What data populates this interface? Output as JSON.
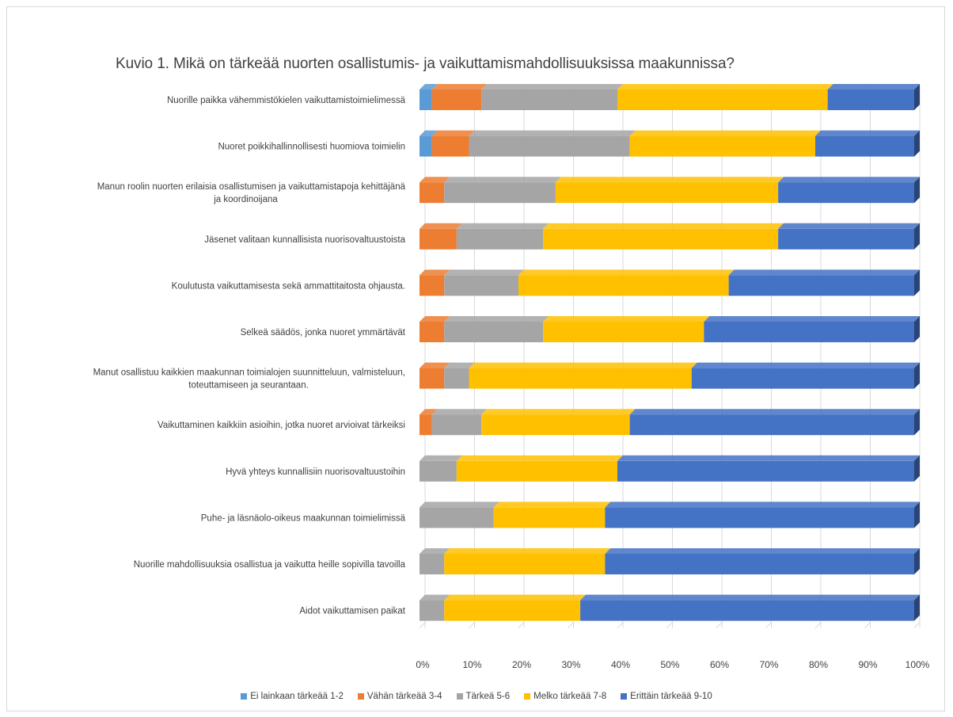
{
  "chart_data": {
    "type": "bar",
    "orientation": "horizontal",
    "stacked": true,
    "percent": true,
    "title": "Kuvio 1. Mikä on tärkeää nuorten osallistumis- ja vaikuttamismahdollisuuksissa maakunnissa?",
    "xlim": [
      0,
      100
    ],
    "xticks": [
      "0%",
      "10%",
      "20%",
      "30%",
      "40%",
      "50%",
      "60%",
      "70%",
      "80%",
      "90%",
      "100%"
    ],
    "grid": true,
    "legend_position": "bottom",
    "categories": [
      "Nuorille paikka vähemmistökielen vaikuttamistoimielimessä",
      "Nuoret poikkihallinnollisesti huomiova toimielin",
      "Manun roolin nuorten erilaisia osallistumisen ja vaikuttamistapoja kehittäjänä ja koordinoijana",
      "Jäsenet valitaan kunnallisista nuorisovaltuustoista",
      "Koulutusta vaikuttamisesta sekä ammattitaitosta ohjausta.",
      "Selkeä säädös, jonka nuoret ymmärtävät",
      "Manut osallistuu kaikkien maakunnan toimialojen suunnitteluun, valmisteluun, toteuttamiseen ja seurantaan.",
      "Vaikuttaminen kaikkiin asioihin, jotka nuoret arvioivat tärkeiksi",
      "Hyvä yhteys kunnallisiin nuorisovaltuustoihin",
      "Puhe- ja läsnäolo-oikeus maakunnan toimielimissä",
      "Nuorille mahdollisuuksia osallistua ja vaikutta heille sopivilla tavoilla",
      "Aidot vaikuttamisen paikat"
    ],
    "series": [
      {
        "name": "Ei lainkaan tärkeää 1-2",
        "color": "#5b9bd5",
        "values": [
          2.5,
          2.5,
          0,
          0,
          0,
          0,
          0,
          0,
          0,
          0,
          0,
          0
        ]
      },
      {
        "name": "Vähän tärkeää 3-4",
        "color": "#ed7d31",
        "values": [
          10,
          7.5,
          5,
          7.5,
          5,
          5,
          5,
          2.5,
          0,
          0,
          0,
          0
        ]
      },
      {
        "name": "Tärkeä 5-6",
        "color": "#a5a5a5",
        "values": [
          27.5,
          32.5,
          22.5,
          17.5,
          15,
          20,
          5,
          10,
          7.5,
          15,
          5,
          5
        ]
      },
      {
        "name": "Melko tärkeää 7-8",
        "color": "#ffc000",
        "values": [
          42.5,
          37.5,
          45,
          47.5,
          42.5,
          32.5,
          45,
          30,
          32.5,
          22.5,
          32.5,
          27.5
        ]
      },
      {
        "name": "Erittäin tärkeää 9-10",
        "color": "#4472c4",
        "values": [
          17.5,
          20,
          27.5,
          27.5,
          37.5,
          42.5,
          45,
          57.5,
          60,
          62.5,
          62.5,
          67.5
        ]
      }
    ]
  }
}
